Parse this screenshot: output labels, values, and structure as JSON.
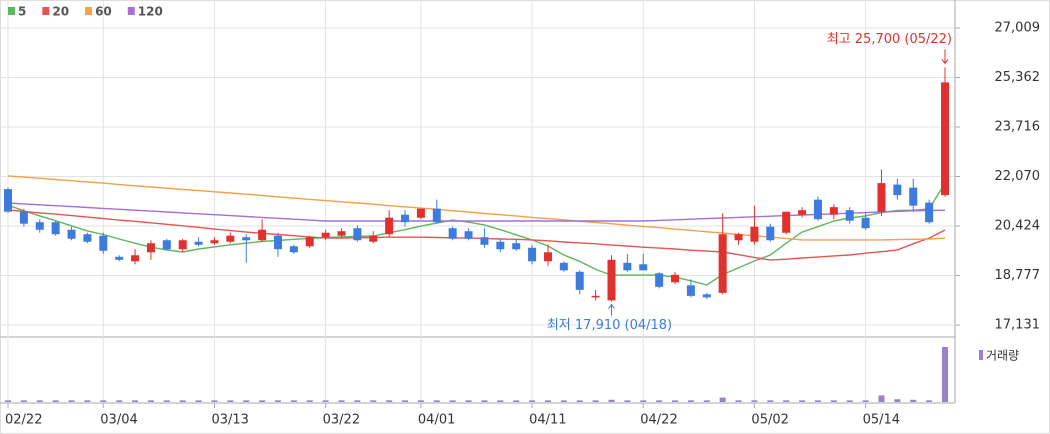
{
  "chart_data": {
    "type": "candlestick",
    "legend": [
      "5",
      "20",
      "60",
      "120"
    ],
    "categories": [
      "02/22",
      null,
      null,
      null,
      null,
      null,
      "03/04",
      null,
      null,
      null,
      null,
      null,
      null,
      "03/13",
      null,
      null,
      null,
      null,
      null,
      null,
      "03/22",
      null,
      null,
      null,
      null,
      null,
      "04/01",
      null,
      null,
      null,
      null,
      null,
      null,
      "04/11",
      null,
      null,
      null,
      null,
      null,
      null,
      "04/22",
      null,
      null,
      null,
      null,
      null,
      null,
      "05/02",
      null,
      null,
      null,
      null,
      null,
      null,
      "05/14",
      null,
      null,
      null,
      null,
      null
    ],
    "up_color": "#e0312e",
    "down_color": "#3d7bdc",
    "open": [
      21650,
      20900,
      20550,
      20550,
      20300,
      20150,
      20100,
      19400,
      19250,
      19550,
      19950,
      19650,
      19900,
      19850,
      19900,
      20050,
      19950,
      20100,
      19750,
      19750,
      20050,
      20100,
      20350,
      19900,
      20150,
      20800,
      20700,
      21000,
      20350,
      20250,
      20050,
      19900,
      19850,
      19700,
      19250,
      19200,
      18900,
      18050,
      17950,
      19200,
      19150,
      18850,
      18550,
      18450,
      18150,
      18200,
      19950,
      19900,
      20400,
      20200,
      20800,
      21300,
      20800,
      20950,
      20700,
      20900,
      21800,
      21700,
      21200,
      21450
    ],
    "high": [
      21700,
      21000,
      20650,
      20600,
      20400,
      20200,
      20200,
      19450,
      19650,
      19950,
      20000,
      20000,
      20050,
      20050,
      20200,
      20150,
      20650,
      20200,
      19800,
      20100,
      20300,
      20350,
      20450,
      20250,
      20950,
      20950,
      21000,
      21300,
      20400,
      20350,
      20350,
      20000,
      20000,
      19800,
      19800,
      19250,
      18950,
      18300,
      19450,
      19500,
      19500,
      18900,
      18900,
      18650,
      18200,
      20850,
      20200,
      21100,
      20500,
      20900,
      21050,
      21400,
      21150,
      21050,
      20850,
      22300,
      22000,
      22000,
      21300,
      25700
    ],
    "low": [
      20850,
      20400,
      20200,
      20100,
      19950,
      19850,
      19500,
      19250,
      19150,
      19300,
      19600,
      19550,
      19750,
      19800,
      19850,
      19200,
      19900,
      19400,
      19500,
      19700,
      19950,
      20050,
      19900,
      19850,
      20050,
      20400,
      20650,
      20500,
      19950,
      19950,
      19700,
      19550,
      19600,
      19150,
      19100,
      18900,
      18150,
      17950,
      17910,
      18900,
      18950,
      18350,
      18500,
      18050,
      18000,
      18150,
      19800,
      19800,
      19900,
      20150,
      20700,
      20600,
      20650,
      20500,
      20300,
      20750,
      21300,
      20900,
      20500,
      21400
    ],
    "close": [
      20900,
      20500,
      20300,
      20150,
      20000,
      19900,
      19600,
      19300,
      19450,
      19850,
      19650,
      19950,
      19800,
      19950,
      20100,
      19950,
      20300,
      19650,
      19550,
      20050,
      20200,
      20250,
      19950,
      20100,
      20700,
      20550,
      21000,
      20550,
      20000,
      20000,
      19800,
      19650,
      19650,
      19250,
      19550,
      18950,
      18300,
      18100,
      19300,
      18950,
      18950,
      18400,
      18800,
      18100,
      18050,
      20150,
      20150,
      20400,
      19950,
      20900,
      20950,
      20650,
      21050,
      20600,
      20350,
      21850,
      21450,
      21100,
      20550,
      25200
    ],
    "series": [
      {
        "name": "5",
        "color": "#5cb85c",
        "values": [
          21120,
          20930,
          20760,
          20600,
          20430,
          20260,
          20140,
          19990,
          19850,
          19720,
          19630,
          19560,
          19660,
          19730,
          19800,
          19850,
          19910,
          19940,
          19980,
          20010,
          20040,
          20060,
          20080,
          20090,
          20200,
          20300,
          20420,
          20520,
          20620,
          20550,
          20460,
          20300,
          20130,
          19960,
          19760,
          19460,
          19250,
          18980,
          18790,
          18790,
          18790,
          18790,
          18720,
          18600,
          18460,
          18810,
          19030,
          19260,
          19460,
          19850,
          20220,
          20400,
          20590,
          20690,
          20760,
          20870,
          20940,
          20950,
          20990,
          21850
        ]
      },
      {
        "name": "20",
        "color": "#e65555",
        "values": [
          20960,
          20910,
          20860,
          20820,
          20770,
          20720,
          20670,
          20620,
          20580,
          20530,
          20480,
          20430,
          20380,
          20320,
          20270,
          20220,
          20180,
          20140,
          20100,
          20060,
          20020,
          20020,
          20030,
          20040,
          20050,
          20050,
          20050,
          20040,
          20030,
          20020,
          20010,
          19990,
          19980,
          19960,
          19930,
          19890,
          19860,
          19830,
          19790,
          19760,
          19720,
          19690,
          19660,
          19620,
          19590,
          19560,
          19470,
          19380,
          19290,
          19320,
          19360,
          19390,
          19430,
          19460,
          19520,
          19570,
          19630,
          19830,
          20020,
          20290
        ]
      },
      {
        "name": "60",
        "color": "#f5a04a",
        "values": [
          22090,
          22050,
          22010,
          21970,
          21930,
          21890,
          21850,
          21800,
          21760,
          21720,
          21680,
          21640,
          21600,
          21560,
          21520,
          21480,
          21440,
          21390,
          21350,
          21310,
          21270,
          21230,
          21190,
          21150,
          21100,
          21060,
          21020,
          20980,
          20930,
          20890,
          20840,
          20800,
          20760,
          20710,
          20670,
          20630,
          20580,
          20540,
          20500,
          20450,
          20410,
          20370,
          20320,
          20280,
          20230,
          20190,
          20140,
          20100,
          20050,
          20010,
          19960,
          19960,
          19960,
          19960,
          19960,
          19960,
          19970,
          19980,
          19990,
          20020
        ]
      },
      {
        "name": "120",
        "color": "#a66fd6",
        "values": [
          21190,
          21160,
          21130,
          21100,
          21070,
          21040,
          21010,
          20980,
          20950,
          20920,
          20890,
          20860,
          20830,
          20800,
          20770,
          20740,
          20710,
          20680,
          20650,
          20620,
          20590,
          20590,
          20590,
          20590,
          20590,
          20590,
          20590,
          20590,
          20590,
          20590,
          20590,
          20590,
          20590,
          20590,
          20590,
          20590,
          20590,
          20590,
          20590,
          20590,
          20590,
          20610,
          20630,
          20650,
          20670,
          20690,
          20710,
          20730,
          20750,
          20770,
          20790,
          20810,
          20830,
          20850,
          20870,
          20890,
          20910,
          20930,
          20940,
          20950
        ]
      }
    ],
    "ylim": [
      17131,
      27009
    ],
    "yticks": [
      {
        "value": 17131,
        "label": "17,131"
      },
      {
        "value": 18777,
        "label": "18,777"
      },
      {
        "value": 20424,
        "label": "20,424"
      },
      {
        "value": 22070,
        "label": "22,070"
      },
      {
        "value": 23716,
        "label": "23,716"
      },
      {
        "value": 25362,
        "label": "25,362"
      },
      {
        "value": 27009,
        "label": "27,009"
      }
    ],
    "grid": true,
    "high_annotation": {
      "text": "최고 25,700 (05/22)",
      "index": 59
    },
    "low_annotation": {
      "text": "최저 17,910 (04/18)",
      "index": 38
    },
    "volume": {
      "label": "거래량",
      "color": "#9b80d0",
      "values": [
        3,
        3,
        3,
        3,
        3,
        3,
        3,
        3,
        3,
        3,
        3,
        3,
        3,
        3,
        3,
        3,
        3,
        3,
        3,
        3,
        3,
        3,
        3,
        3,
        3,
        3,
        3,
        3,
        3,
        3,
        3,
        3,
        3,
        3,
        3,
        3,
        3,
        3,
        4,
        3,
        3,
        3,
        3,
        3,
        3,
        8,
        3,
        3,
        3,
        3,
        3,
        3,
        3,
        3,
        3,
        12,
        5,
        4,
        3,
        100
      ]
    }
  }
}
